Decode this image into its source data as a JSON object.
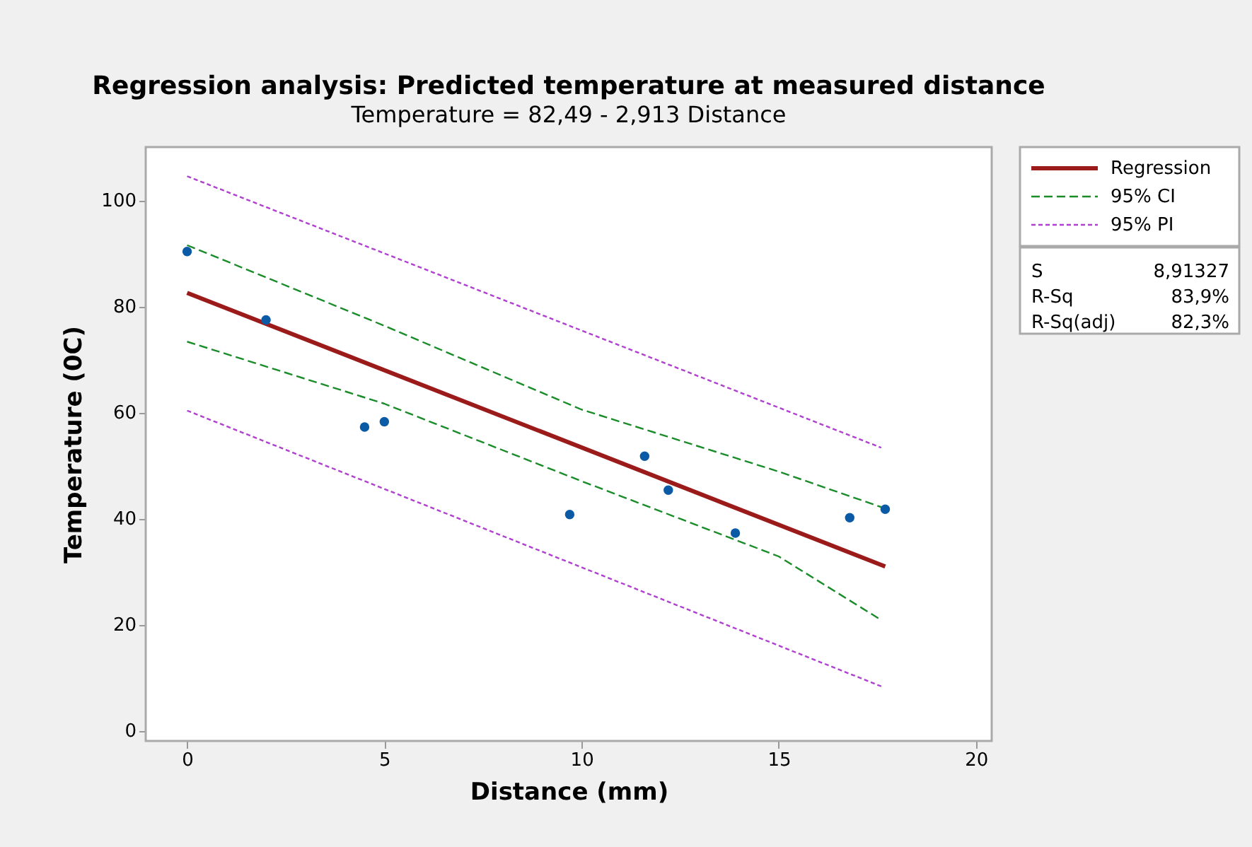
{
  "chart_data": {
    "type": "scatter",
    "title": "Regression analysis: Predicted temperature at measured distance",
    "subtitle": "Temperature = 82,49 - 2,913 Distance",
    "xlabel": "Distance (mm)",
    "ylabel": "Temperature (0C)",
    "xlim": [
      -1.05,
      20.4
    ],
    "ylim": [
      -2,
      110
    ],
    "xticks": [
      0,
      5,
      10,
      15,
      20
    ],
    "yticks": [
      0,
      20,
      40,
      60,
      80,
      100
    ],
    "grid": false,
    "legend": "top right",
    "series": [
      {
        "marker": "circle",
        "color": "#0b5aa6",
        "x": [
          0,
          2.0,
          4.5,
          5.0,
          9.7,
          11.6,
          12.2,
          13.9,
          16.8,
          17.7
        ],
        "values": [
          90.3,
          77.4,
          57.2,
          58.2,
          40.7,
          51.7,
          45.3,
          37.2,
          40.1,
          41.7
        ]
      },
      {
        "type": "line",
        "name": "Regression",
        "color": "#9b1b1b",
        "line_style": "solid",
        "x": [
          0,
          17.7
        ],
        "values": [
          82.5,
          30.9
        ]
      },
      {
        "type": "line",
        "name": "95% CI",
        "color": "#1a8c2a",
        "line_style": "dashed",
        "x": [
          0,
          5,
          10,
          15,
          17.6
        ],
        "values": [
          91.5,
          76.3,
          60.5,
          48.8,
          42.1
        ]
      },
      {
        "type": "line",
        "color": "#1a8c2a",
        "line_style": "dashed",
        "x": [
          0,
          5,
          10,
          15,
          17.6
        ],
        "values": [
          73.3,
          61.6,
          47.0,
          32.8,
          20.8
        ]
      },
      {
        "type": "line",
        "name": "95% PI",
        "color": "#b040d0",
        "line_style": "dotted",
        "x": [
          0,
          17.6
        ],
        "values": [
          104.5,
          53.3
        ]
      },
      {
        "type": "line",
        "color": "#b040d0",
        "line_style": "dotted",
        "x": [
          0,
          17.6
        ],
        "values": [
          60.3,
          8.3
        ]
      }
    ],
    "annotations": [
      "S",
      "8,91327",
      "R-Sq",
      "83,9%",
      "R-Sq(adj)",
      "82,3%"
    ]
  }
}
